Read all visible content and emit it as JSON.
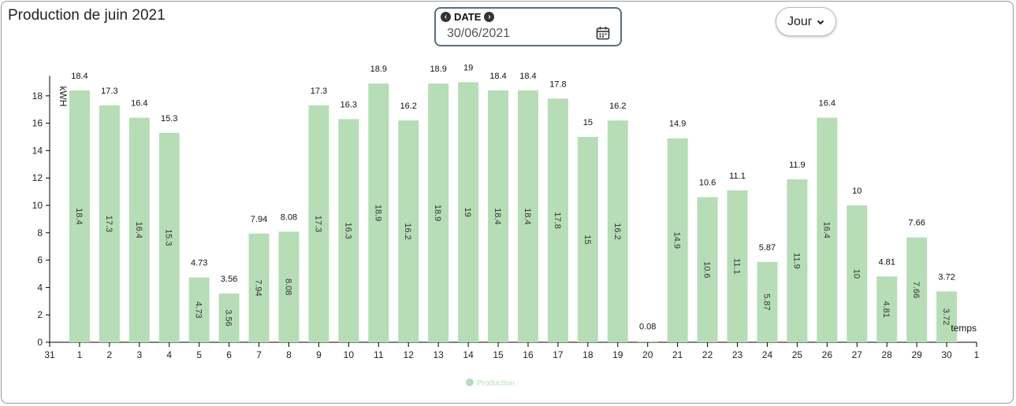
{
  "header": {
    "title": "Production de juin 2021",
    "date_label": "DATE",
    "date_value": "30/06/2021",
    "period": "Jour"
  },
  "icons": {
    "prev": "chevron-left-circle-icon",
    "next": "chevron-right-circle-icon",
    "calendar": "calendar-icon",
    "dropdown": "chevron-down-icon"
  },
  "colors": {
    "bar": "#b7ddb7",
    "legend_text": "#b7ddb7"
  },
  "chart_data": {
    "type": "bar",
    "ylabel": "kWH",
    "xlabel": "temps",
    "ylim": [
      0,
      19
    ],
    "yticks": [
      0,
      2,
      4,
      6,
      8,
      10,
      12,
      14,
      16,
      18
    ],
    "xticks": [
      "31",
      "1",
      "2",
      "3",
      "4",
      "5",
      "6",
      "7",
      "8",
      "9",
      "10",
      "11",
      "12",
      "13",
      "14",
      "15",
      "16",
      "17",
      "18",
      "19",
      "20",
      "21",
      "22",
      "23",
      "24",
      "25",
      "26",
      "27",
      "28",
      "29",
      "30",
      "1"
    ],
    "categories": [
      "1",
      "2",
      "3",
      "4",
      "5",
      "6",
      "7",
      "8",
      "9",
      "10",
      "11",
      "12",
      "13",
      "14",
      "15",
      "16",
      "17",
      "18",
      "19",
      "20",
      "21",
      "22",
      "23",
      "24",
      "25",
      "26",
      "27",
      "28",
      "29",
      "30"
    ],
    "series": [
      {
        "name": "Production",
        "values": [
          18.4,
          17.3,
          16.4,
          15.3,
          4.73,
          3.56,
          7.94,
          8.08,
          17.3,
          16.3,
          18.9,
          16.2,
          18.9,
          19,
          18.4,
          18.4,
          17.8,
          15,
          16.2,
          0.08,
          14.9,
          10.6,
          11.1,
          5.87,
          11.9,
          16.4,
          10,
          4.81,
          7.66,
          3.72
        ]
      }
    ],
    "legend": "bottom-center",
    "grid": false
  }
}
